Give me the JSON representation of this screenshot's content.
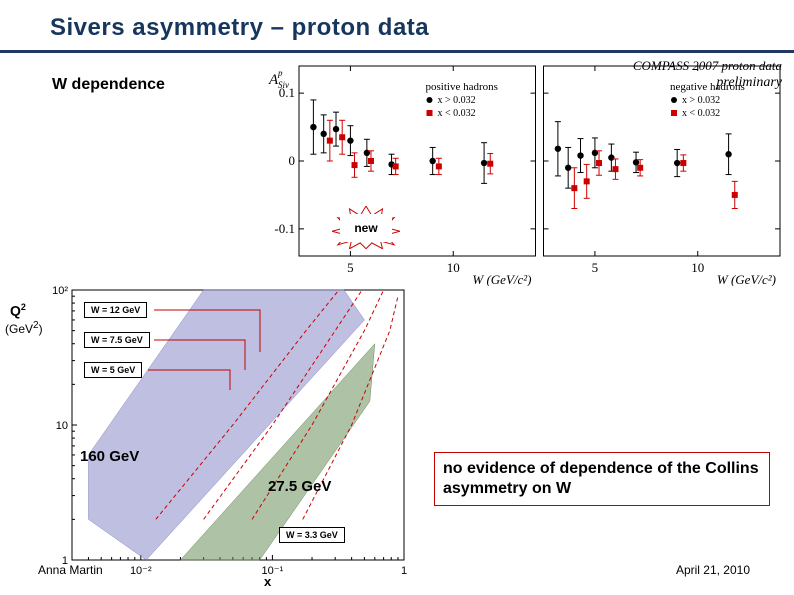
{
  "title": "Sivers asymmetry – proton data",
  "subtitle": "W dependence",
  "footer_left": "Anna Martin",
  "footer_right": "April 21, 2010",
  "new_label": "new",
  "note": "no evidence of dependence of the Collins asymmetry on W",
  "q2_label": "Q",
  "q2_sup": "2",
  "q2_unit": "(GeV",
  "q2_unit_sup": "2",
  "q2_unit_close": ")",
  "x_axis_label": "x",
  "w_boxes": {
    "w12": "W = 12 GeV",
    "w7_5": "W = 7.5 GeV",
    "w5": "W = 5 GeV",
    "w3_3": "W = 3.3 GeV"
  },
  "beam": {
    "b160": "160 GeV",
    "b27_5": "27.5 GeV"
  },
  "top_chart": {
    "type": "scatter-errorbar",
    "background": "#ffffff",
    "x_axis": {
      "label": "W (GeV/c²)",
      "ticks": [
        5,
        10
      ],
      "range": [
        2.5,
        14
      ],
      "log": false,
      "fontsize": 14,
      "font": "serif-italic"
    },
    "y_axis": {
      "label": "A_Siv^p",
      "ticks": [
        -0.1,
        0,
        0.1
      ],
      "range": [
        -0.14,
        0.14
      ],
      "fontsize": 14,
      "font": "serif-italic"
    },
    "header_right": {
      "line1": "COMPASS 2007 proton data",
      "line2": "preliminary",
      "font": "serif-italic",
      "fontsize": 13
    },
    "legend": {
      "left": {
        "title": "positive hadrons",
        "items": [
          {
            "sym": "filled-circle",
            "color": "#000000",
            "label": "x > 0.032"
          },
          {
            "sym": "filled-square",
            "color": "#cc0000",
            "label": "x < 0.032"
          }
        ]
      },
      "right": {
        "title": "negative hadrons",
        "items": [
          {
            "sym": "filled-circle",
            "color": "#000000",
            "label": "x > 0.032"
          },
          {
            "sym": "filled-square",
            "color": "#cc0000",
            "label": "x < 0.032"
          }
        ]
      }
    },
    "panels": [
      {
        "name": "positive",
        "series": [
          {
            "color": "#000000",
            "marker": "circle",
            "size": 5,
            "points": [
              {
                "x": 3.2,
                "y": 0.05,
                "ey": 0.04
              },
              {
                "x": 3.7,
                "y": 0.04,
                "ey": 0.028
              },
              {
                "x": 4.3,
                "y": 0.047,
                "ey": 0.025
              },
              {
                "x": 5.0,
                "y": 0.03,
                "ey": 0.022
              },
              {
                "x": 5.8,
                "y": 0.012,
                "ey": 0.02
              },
              {
                "x": 7.0,
                "y": -0.005,
                "ey": 0.015
              },
              {
                "x": 9.0,
                "y": 0.0,
                "ey": 0.02
              },
              {
                "x": 11.5,
                "y": -0.003,
                "ey": 0.03
              }
            ]
          },
          {
            "color": "#cc0000",
            "marker": "square",
            "size": 5,
            "points": [
              {
                "x": 4.0,
                "y": 0.03,
                "ey": 0.03
              },
              {
                "x": 4.6,
                "y": 0.035,
                "ey": 0.025
              },
              {
                "x": 5.2,
                "y": -0.006,
                "ey": 0.018
              },
              {
                "x": 6.0,
                "y": 0.0,
                "ey": 0.015
              },
              {
                "x": 7.2,
                "y": -0.008,
                "ey": 0.012
              },
              {
                "x": 9.3,
                "y": -0.008,
                "ey": 0.012
              },
              {
                "x": 11.8,
                "y": -0.004,
                "ey": 0.015
              }
            ]
          }
        ]
      },
      {
        "name": "negative",
        "series": [
          {
            "color": "#000000",
            "marker": "circle",
            "size": 5,
            "points": [
              {
                "x": 3.2,
                "y": 0.018,
                "ey": 0.04
              },
              {
                "x": 3.7,
                "y": -0.01,
                "ey": 0.03
              },
              {
                "x": 4.3,
                "y": 0.008,
                "ey": 0.025
              },
              {
                "x": 5.0,
                "y": 0.012,
                "ey": 0.022
              },
              {
                "x": 5.8,
                "y": 0.005,
                "ey": 0.02
              },
              {
                "x": 7.0,
                "y": -0.002,
                "ey": 0.015
              },
              {
                "x": 9.0,
                "y": -0.003,
                "ey": 0.02
              },
              {
                "x": 11.5,
                "y": 0.01,
                "ey": 0.03
              }
            ]
          },
          {
            "color": "#cc0000",
            "marker": "square",
            "size": 5,
            "points": [
              {
                "x": 4.0,
                "y": -0.04,
                "ey": 0.03
              },
              {
                "x": 4.6,
                "y": -0.03,
                "ey": 0.025
              },
              {
                "x": 5.2,
                "y": -0.003,
                "ey": 0.018
              },
              {
                "x": 6.0,
                "y": -0.012,
                "ey": 0.015
              },
              {
                "x": 7.2,
                "y": -0.01,
                "ey": 0.012
              },
              {
                "x": 9.3,
                "y": -0.003,
                "ey": 0.012
              },
              {
                "x": 11.8,
                "y": -0.05,
                "ey": 0.02
              }
            ]
          }
        ]
      }
    ]
  },
  "bottom_chart": {
    "type": "area-bands-log",
    "background": "#ffffff",
    "x_axis": {
      "label": "x",
      "range": [
        0.003,
        1
      ],
      "log": true,
      "ticks": [
        0.01,
        0.1,
        1
      ],
      "labels": [
        "10⁻²",
        "10⁻¹",
        "1"
      ]
    },
    "y_axis": {
      "label": "Q²",
      "unit": "GeV²",
      "range": [
        1,
        100
      ],
      "log": true,
      "ticks": [
        1,
        10,
        100
      ],
      "labels": [
        "1",
        "10",
        "10²"
      ]
    },
    "bands": [
      {
        "name": "160 GeV",
        "fill": "#8a8ac8",
        "opacity": 0.55,
        "poly": [
          [
            0.004,
            2.0
          ],
          [
            0.011,
            1.0
          ],
          [
            0.5,
            60
          ],
          [
            0.35,
            100
          ],
          [
            0.03,
            100
          ],
          [
            0.004,
            6.0
          ]
        ]
      },
      {
        "name": "27.5 GeV",
        "fill": "#6b8f5d",
        "opacity": 0.55,
        "poly": [
          [
            0.02,
            1.0
          ],
          [
            0.6,
            40
          ],
          [
            0.55,
            15
          ],
          [
            0.08,
            1.0
          ]
        ]
      }
    ],
    "w_lines": {
      "color": "#cc0000",
      "dash": "4,3",
      "width": 1,
      "curves": [
        {
          "label": "W=12",
          "pts": [
            [
              0.013,
              2.0
            ],
            [
              0.05,
              10
            ],
            [
              0.18,
              50
            ],
            [
              0.32,
              100
            ]
          ]
        },
        {
          "label": "W=7.5",
          "pts": [
            [
              0.03,
              2.0
            ],
            [
              0.1,
              10
            ],
            [
              0.3,
              50
            ],
            [
              0.48,
              100
            ]
          ]
        },
        {
          "label": "W=5",
          "pts": [
            [
              0.07,
              2.0
            ],
            [
              0.2,
              10
            ],
            [
              0.5,
              50
            ],
            [
              0.7,
              100
            ]
          ]
        },
        {
          "label": "W=3.3",
          "pts": [
            [
              0.17,
              2.0
            ],
            [
              0.4,
              10
            ],
            [
              0.78,
              50
            ],
            [
              0.9,
              90
            ]
          ]
        }
      ]
    }
  },
  "colors": {
    "title": "#17365d",
    "rule": "#1f3864",
    "red": "#cc0000",
    "band_purple": "#8a8ac8",
    "band_green": "#6b8f5d",
    "note_border": "#c00000"
  }
}
